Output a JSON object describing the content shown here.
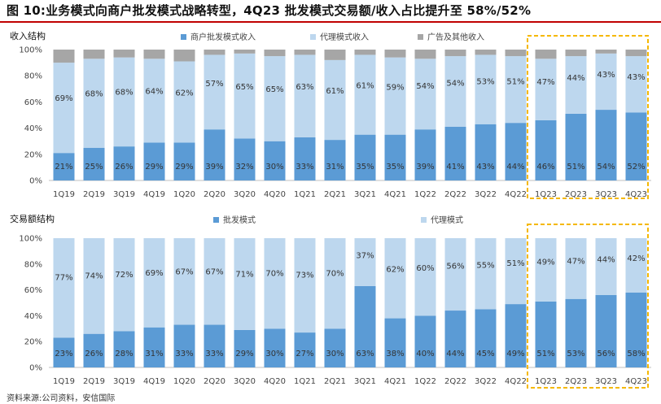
{
  "title": "图 10:业务模式向商户批发模式战略转型，4Q23 批发模式交易额/收入占比提升至 58%/52%",
  "source": "资料来源:公司资料，安信国际",
  "colors": {
    "dark_blue": "#5b9bd5",
    "light_blue": "#bdd7ee",
    "grey": "#a6a6a6",
    "highlight": "#f5b800"
  },
  "chart_data": [
    {
      "type": "stacked-bar",
      "panel_label": "收入结构",
      "categories": [
        "1Q19",
        "2Q19",
        "3Q19",
        "4Q19",
        "1Q20",
        "2Q20",
        "3Q20",
        "4Q20",
        "1Q21",
        "2Q21",
        "3Q21",
        "4Q21",
        "1Q22",
        "2Q22",
        "3Q22",
        "4Q22",
        "1Q23",
        "2Q23",
        "3Q23",
        "4Q23"
      ],
      "y_ticks": [
        "0%",
        "20%",
        "40%",
        "60%",
        "80%",
        "100%"
      ],
      "ylim": [
        0,
        100
      ],
      "highlight": [
        "1Q23",
        "4Q23"
      ],
      "series": [
        {
          "name": "商户批发模式收入",
          "color": "#5b9bd5",
          "labeled": true,
          "values": [
            21,
            25,
            26,
            29,
            29,
            39,
            32,
            30,
            33,
            31,
            35,
            35,
            39,
            41,
            43,
            44,
            46,
            51,
            54,
            52
          ]
        },
        {
          "name": "代理模式收入",
          "color": "#bdd7ee",
          "labeled": true,
          "values": [
            69,
            68,
            68,
            64,
            62,
            57,
            65,
            65,
            63,
            61,
            61,
            59,
            54,
            54,
            53,
            51,
            47,
            44,
            43,
            43
          ]
        },
        {
          "name": "广告及其他收入",
          "color": "#a6a6a6",
          "labeled": false,
          "values": [
            10,
            7,
            6,
            7,
            9,
            4,
            3,
            5,
            4,
            8,
            4,
            6,
            7,
            5,
            4,
            5,
            7,
            5,
            3,
            5
          ]
        }
      ]
    },
    {
      "type": "stacked-bar",
      "panel_label": "交易额结构",
      "categories": [
        "1Q19",
        "2Q19",
        "3Q19",
        "4Q19",
        "1Q20",
        "2Q20",
        "3Q20",
        "4Q20",
        "1Q21",
        "2Q21",
        "3Q21",
        "4Q21",
        "1Q22",
        "2Q22",
        "3Q22",
        "4Q22",
        "1Q23",
        "2Q23",
        "3Q23",
        "4Q23"
      ],
      "y_ticks": [
        "0%",
        "20%",
        "40%",
        "60%",
        "80%",
        "100%"
      ],
      "ylim": [
        0,
        100
      ],
      "highlight": [
        "1Q23",
        "4Q23"
      ],
      "series": [
        {
          "name": "批发模式",
          "color": "#5b9bd5",
          "labeled": true,
          "values": [
            23,
            26,
            28,
            31,
            33,
            33,
            29,
            30,
            27,
            30,
            63,
            38,
            40,
            44,
            45,
            49,
            51,
            53,
            56,
            58
          ]
        },
        {
          "name": "代理模式",
          "color": "#bdd7ee",
          "labeled": true,
          "values": [
            77,
            74,
            72,
            69,
            67,
            67,
            71,
            70,
            73,
            70,
            37,
            62,
            60,
            56,
            55,
            51,
            49,
            47,
            44,
            42
          ]
        }
      ]
    }
  ]
}
